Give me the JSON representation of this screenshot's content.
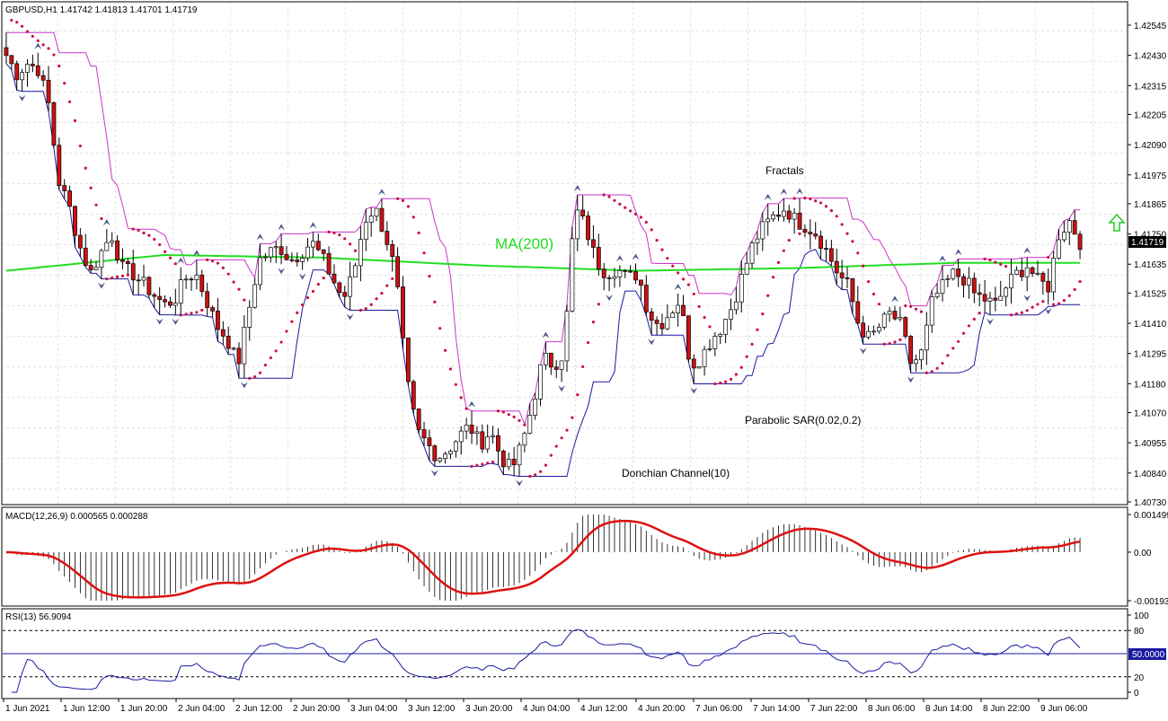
{
  "header": {
    "symbol_info": "GBPUSD,H1  1.41742 1.41813 1.41701 1.41719"
  },
  "price_panel": {
    "axis_ticks": [
      "1.42545",
      "1.42430",
      "1.42315",
      "1.42205",
      "1.42090",
      "1.41975",
      "1.41865",
      "1.41750",
      "1.41635",
      "1.41525",
      "1.41410",
      "1.41295",
      "1.41180",
      "1.41070",
      "1.40955",
      "1.40840",
      "1.40730"
    ],
    "current_price": "1.41719",
    "annotations": {
      "ma": "MA(200)",
      "fractals": "Fractals",
      "sar": "Parabolic SAR(0.02,0.2)",
      "donchian": "Donchian Channel(10)"
    },
    "colors": {
      "bull_candle": "#ffffff",
      "bear_candle": "#cc1111",
      "ma": "#22dd22",
      "sar": "#cc1144",
      "donchian_upper": "#cc33cc",
      "donchian_lower": "#1a1aa0",
      "arrow_up": "#22cc22"
    }
  },
  "macd_panel": {
    "label": "MACD(12,26,9) 0.000565 0.000288",
    "axis_ticks": [
      "0.001499",
      "0.00",
      "-0.001931"
    ]
  },
  "rsi_panel": {
    "label": "RSI(13) 56.9094",
    "axis_ticks": [
      "100",
      "80",
      "20",
      "0"
    ],
    "level_badge": "50.0000"
  },
  "time_axis": {
    "labels": [
      "1 Jun 2021",
      "1 Jun 12:00",
      "1 Jun 20:00",
      "2 Jun 04:00",
      "2 Jun 12:00",
      "2 Jun 20:00",
      "3 Jun 04:00",
      "3 Jun 12:00",
      "3 Jun 20:00",
      "4 Jun 04:00",
      "4 Jun 12:00",
      "4 Jun 20:00",
      "7 Jun 06:00",
      "7 Jun 14:00",
      "7 Jun 22:00",
      "8 Jun 06:00",
      "8 Jun 14:00",
      "8 Jun 22:00",
      "9 Jun 06:00"
    ]
  },
  "chart_data": {
    "type": "candlestick",
    "series_close_trace": [
      [
        0,
        1.4243
      ],
      [
        4,
        1.4236
      ],
      [
        8,
        1.424
      ],
      [
        12,
        1.4238
      ],
      [
        16,
        1.4225
      ],
      [
        20,
        1.4195
      ],
      [
        24,
        1.4185
      ],
      [
        28,
        1.417
      ],
      [
        32,
        1.416
      ],
      [
        36,
        1.4168
      ],
      [
        40,
        1.4175
      ],
      [
        44,
        1.4162
      ],
      [
        48,
        1.416
      ],
      [
        52,
        1.4156
      ],
      [
        56,
        1.4152
      ],
      [
        60,
        1.4148
      ],
      [
        64,
        1.415
      ],
      [
        68,
        1.4158
      ],
      [
        72,
        1.416
      ],
      [
        76,
        1.415
      ],
      [
        80,
        1.414
      ],
      [
        84,
        1.4135
      ],
      [
        88,
        1.4125
      ],
      [
        92,
        1.4145
      ],
      [
        96,
        1.4165
      ],
      [
        100,
        1.4168
      ],
      [
        104,
        1.417
      ],
      [
        108,
        1.4165
      ],
      [
        112,
        1.4168
      ],
      [
        116,
        1.4172
      ],
      [
        120,
        1.4166
      ],
      [
        124,
        1.4158
      ],
      [
        128,
        1.415
      ],
      [
        132,
        1.416
      ],
      [
        136,
        1.418
      ],
      [
        140,
        1.4185
      ],
      [
        144,
        1.4175
      ],
      [
        148,
        1.416
      ],
      [
        152,
        1.412
      ],
      [
        156,
        1.41
      ],
      [
        160,
        1.4095
      ],
      [
        164,
        1.409
      ],
      [
        168,
        1.4093
      ],
      [
        172,
        1.4098
      ],
      [
        176,
        1.4102
      ],
      [
        180,
        1.4095
      ],
      [
        184,
        1.41
      ],
      [
        188,
        1.409
      ],
      [
        192,
        1.4085
      ],
      [
        196,
        1.4095
      ],
      [
        200,
        1.411
      ],
      [
        204,
        1.4128
      ],
      [
        208,
        1.4125
      ],
      [
        212,
        1.413
      ],
      [
        216,
        1.4185
      ],
      [
        220,
        1.4178
      ],
      [
        224,
        1.4165
      ],
      [
        228,
        1.416
      ],
      [
        232,
        1.4162
      ],
      [
        236,
        1.4158
      ],
      [
        240,
        1.416
      ],
      [
        244,
        1.4145
      ],
      [
        248,
        1.414
      ],
      [
        252,
        1.4145
      ],
      [
        256,
        1.415
      ],
      [
        260,
        1.4125
      ],
      [
        264,
        1.4128
      ],
      [
        268,
        1.4135
      ],
      [
        272,
        1.414
      ],
      [
        276,
        1.4148
      ],
      [
        280,
        1.416
      ],
      [
        284,
        1.4172
      ],
      [
        288,
        1.4178
      ],
      [
        292,
        1.4182
      ],
      [
        296,
        1.4185
      ],
      [
        300,
        1.418
      ],
      [
        304,
        1.4178
      ],
      [
        308,
        1.4175
      ],
      [
        312,
        1.4168
      ],
      [
        316,
        1.416
      ],
      [
        320,
        1.4155
      ],
      [
        324,
        1.414
      ],
      [
        328,
        1.4135
      ],
      [
        332,
        1.414
      ],
      [
        336,
        1.4145
      ],
      [
        340,
        1.414
      ],
      [
        344,
        1.4125
      ],
      [
        348,
        1.413
      ],
      [
        352,
        1.415
      ],
      [
        356,
        1.4155
      ],
      [
        360,
        1.416
      ],
      [
        364,
        1.4158
      ],
      [
        368,
        1.4152
      ],
      [
        372,
        1.415
      ],
      [
        376,
        1.4148
      ],
      [
        380,
        1.4155
      ],
      [
        384,
        1.416
      ],
      [
        388,
        1.4163
      ],
      [
        392,
        1.4157
      ],
      [
        396,
        1.4155
      ],
      [
        400,
        1.4175
      ],
      [
        404,
        1.418
      ],
      [
        408,
        1.4172
      ]
    ],
    "ma200_trace": [
      [
        0,
        1.4161
      ],
      [
        60,
        1.4167
      ],
      [
        120,
        1.4166
      ],
      [
        180,
        1.4163
      ],
      [
        240,
        1.4161
      ],
      [
        300,
        1.4162
      ],
      [
        360,
        1.4164
      ],
      [
        408,
        1.4164
      ]
    ],
    "y_range": [
      1.4073,
      1.42545
    ],
    "macd_range": [
      -0.001931,
      0.001499
    ],
    "rsi_range": [
      0,
      100
    ],
    "rsi_levels": [
      20,
      50,
      80
    ]
  }
}
